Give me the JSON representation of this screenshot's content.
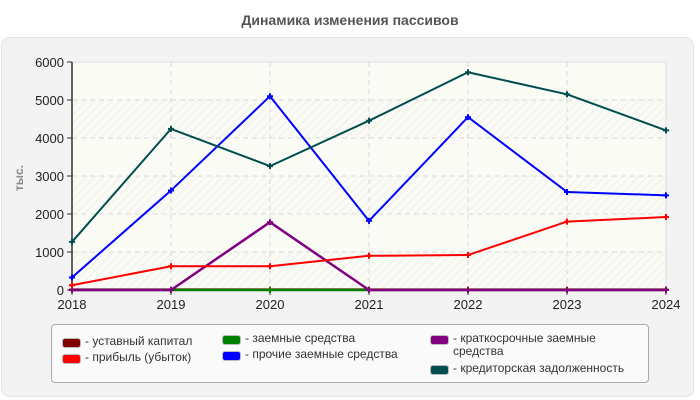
{
  "title": "Динамика изменения пассивов",
  "ylabel": "тыс.",
  "legend": [
    {
      "label": "- уставный капитал",
      "color": "#800000"
    },
    {
      "label": "- прибыль (убыток)",
      "color": "#ff0000"
    },
    {
      "label": "- заемные средства",
      "color": "#008000"
    },
    {
      "label": "- прочие заемные средства",
      "color": "#0000ff"
    },
    {
      "label": "- краткосрочные заемные\nсредства",
      "color": "#800080"
    },
    {
      "label": "- кредиторская задолженность",
      "color": "#004d4d"
    }
  ],
  "chart_data": {
    "type": "line",
    "title": "Динамика изменения пассивов",
    "xlabel": "",
    "ylabel": "тыс.",
    "x": [
      "2018",
      "2019",
      "2020",
      "2021",
      "2022",
      "2023",
      "2024"
    ],
    "ylim": [
      0,
      6000
    ],
    "yticks": [
      0,
      1000,
      2000,
      3000,
      4000,
      5000,
      6000
    ],
    "grid": true,
    "legend_position": "bottom",
    "series": [
      {
        "name": "уставный капитал",
        "color": "#800000",
        "values": [
          10,
          10,
          10,
          10,
          10,
          10,
          10
        ]
      },
      {
        "name": "прибыль (убыток)",
        "color": "#ff0000",
        "values": [
          125,
          625,
          625,
          900,
          920,
          1800,
          1920
        ]
      },
      {
        "name": "заемные средства",
        "color": "#008000",
        "values": [
          0,
          0,
          0,
          0,
          0,
          0,
          0
        ]
      },
      {
        "name": "прочие заемные средства",
        "color": "#0000ff",
        "values": [
          330,
          2620,
          5100,
          1820,
          4550,
          2580,
          2490
        ]
      },
      {
        "name": "краткосрочные заемные средства",
        "color": "#800080",
        "values": [
          0,
          0,
          1785,
          0,
          0,
          0,
          0
        ]
      },
      {
        "name": "кредиторская задолженность",
        "color": "#004d4d",
        "values": [
          1265,
          4240,
          3260,
          4455,
          5730,
          5150,
          4200
        ]
      }
    ]
  }
}
